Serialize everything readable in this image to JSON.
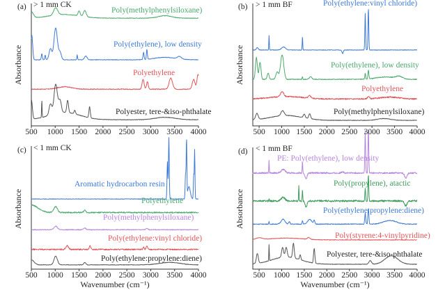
{
  "chart_data": [
    {
      "type": "line",
      "panel_label": "(a)",
      "title": "> 1 mm CK",
      "xlabel": "",
      "ylabel": "Absorbance",
      "xlim": [
        500,
        4000
      ],
      "ylim": [
        0,
        10
      ],
      "xticks": [
        500,
        1000,
        1500,
        2000,
        2500,
        3000,
        3500,
        4000
      ],
      "series": [
        {
          "name": "Poly(methylphenylsiloxane)",
          "color": "#4aa96c",
          "base": 8.8,
          "noise": 0.02,
          "peaks": [
            [
              500,
              0.5,
              60
            ],
            [
              1010,
              0.6,
              60
            ],
            [
              1500,
              0.4,
              30
            ],
            [
              1620,
              0.5,
              40
            ],
            [
              3300,
              0.2,
              200
            ],
            [
              1200,
              0.3,
              450
            ]
          ]
        },
        {
          "name": "Poly(ethylene), low density",
          "color": "#3d7ad6",
          "base": 5.4,
          "noise": 0.02,
          "peaks": [
            [
              510,
              2.0,
              25
            ],
            [
              720,
              0.5,
              15
            ],
            [
              790,
              0.4,
              12
            ],
            [
              900,
              0.9,
              40
            ],
            [
              1010,
              2.6,
              50
            ],
            [
              1100,
              0.6,
              40
            ],
            [
              1460,
              0.4,
              10
            ],
            [
              1640,
              0.3,
              40
            ],
            [
              2850,
              0.6,
              15
            ],
            [
              2920,
              0.8,
              15
            ],
            [
              3300,
              0.2,
              300
            ],
            [
              3600,
              0.2,
              60
            ]
          ]
        },
        {
          "name": "Polyethylene",
          "color": "#e0555a",
          "base": 3.0,
          "noise": 0.03,
          "peaks": [
            [
              1200,
              0.2,
              200
            ],
            [
              2840,
              0.8,
              30
            ],
            [
              2930,
              0.6,
              25
            ],
            [
              3420,
              0.9,
              50
            ],
            [
              3900,
              0.8,
              40
            ],
            [
              3990,
              1.2,
              30
            ]
          ]
        },
        {
          "name": "Polyester, tere-&iso-phthalate",
          "color": "#555555",
          "base": 0.5,
          "noise": 0.02,
          "peaks": [
            [
              500,
              1.6,
              30
            ],
            [
              720,
              1.4,
              8
            ],
            [
              900,
              0.9,
              40
            ],
            [
              1010,
              2.4,
              50
            ],
            [
              1100,
              1.0,
              40
            ],
            [
              1260,
              1.0,
              25
            ],
            [
              1410,
              0.3,
              20
            ],
            [
              1720,
              0.9,
              20
            ],
            [
              1200,
              0.6,
              450
            ],
            [
              3300,
              0.2,
              300
            ]
          ]
        }
      ]
    },
    {
      "type": "line",
      "panel_label": "(b)",
      "title": "> 1 mm BF",
      "xlabel": "",
      "ylabel": "Absorbance",
      "xlim": [
        360,
        4000
      ],
      "ylim": [
        0,
        10
      ],
      "xticks": [
        500,
        1000,
        1500,
        2000,
        2500,
        3000,
        3500,
        4000
      ],
      "series": [
        {
          "name": "Poly(ethylene:vinyl chloride)",
          "color": "#3d7ad6",
          "base": 6.2,
          "noise": 0.02,
          "peaks": [
            [
              460,
              0.2,
              30
            ],
            [
              720,
              1.2,
              8
            ],
            [
              1040,
              0.25,
              60
            ],
            [
              1460,
              1.1,
              8
            ],
            [
              2350,
              -0.3,
              20
            ],
            [
              2850,
              3.0,
              12
            ],
            [
              2920,
              3.4,
              12
            ]
          ]
        },
        {
          "name": "Poly(ethylene), low density",
          "color": "#4aa96c",
          "base": 3.8,
          "noise": 0.03,
          "peaks": [
            [
              440,
              1.8,
              30
            ],
            [
              520,
              1.4,
              30
            ],
            [
              700,
              0.5,
              30
            ],
            [
              900,
              0.6,
              40
            ],
            [
              1010,
              2.0,
              50
            ],
            [
              1460,
              0.2,
              10
            ],
            [
              1640,
              0.2,
              40
            ],
            [
              2850,
              0.5,
              12
            ],
            [
              2920,
              0.7,
              15
            ],
            [
              3300,
              0.2,
              300
            ],
            [
              3600,
              0.2,
              100
            ]
          ]
        },
        {
          "name": "Polyethylene",
          "color": "#e0555a",
          "base": 2.2,
          "noise": 0.05,
          "peaks": [
            [
              1010,
              0.4,
              50
            ],
            [
              1620,
              0.2,
              40
            ],
            [
              1100,
              0.2,
              500
            ],
            [
              2920,
              0.2,
              30
            ],
            [
              3400,
              0.15,
              300
            ]
          ]
        },
        {
          "name": "Poly(methylphenylsiloxane)",
          "color": "#555555",
          "base": 0.45,
          "noise": 0.02,
          "peaks": [
            [
              450,
              0.5,
              40
            ],
            [
              1020,
              0.4,
              50
            ],
            [
              1500,
              0.3,
              30
            ],
            [
              1620,
              0.4,
              30
            ],
            [
              1100,
              0.4,
              500
            ],
            [
              3270,
              0.15,
              200
            ]
          ]
        }
      ]
    },
    {
      "type": "line",
      "panel_label": "(c)",
      "title": "< 1 mm CK",
      "xlabel": "Wavenumber (cm⁻¹)",
      "ylabel": "Absorbance",
      "xlim": [
        500,
        4000
      ],
      "ylim": [
        0,
        10
      ],
      "xticks": [
        500,
        1000,
        1500,
        2000,
        2500,
        3000,
        3500,
        4000
      ],
      "series": [
        {
          "name": "Aromatic hydrocarbon resin",
          "color": "#3d7ad6",
          "base": 5.7,
          "noise": 0.02,
          "peaks": [
            [
              3350,
              3.0,
              12
            ],
            [
              3380,
              5.0,
              12
            ],
            [
              3730,
              2.0,
              12
            ],
            [
              3750,
              4.7,
              10
            ],
            [
              3800,
              1.0,
              40
            ],
            [
              3900,
              2.0,
              10
            ],
            [
              3920,
              4.0,
              10
            ]
          ]
        },
        {
          "name": "Polyethylene",
          "color": "#4aa96c",
          "base": 4.6,
          "noise": 0.05,
          "peaks": [
            [
              500,
              0.6,
              200
            ],
            [
              1010,
              0.5,
              50
            ],
            [
              1620,
              0.2,
              30
            ]
          ]
        },
        {
          "name": "Poly(methylphenylsiloxane)",
          "color": "#b784dd",
          "base": 3.2,
          "noise": 0.03,
          "peaks": [
            [
              1010,
              0.3,
              50
            ],
            [
              1620,
              0.15,
              30
            ],
            [
              2920,
              0.1,
              30
            ]
          ]
        },
        {
          "name": "Poly(ethylene:vinyl chloride)",
          "color": "#e0555a",
          "base": 1.6,
          "noise": 0.05,
          "peaks": [
            [
              1250,
              0.3,
              40
            ],
            [
              1730,
              0.3,
              20
            ],
            [
              2850,
              0.2,
              15
            ],
            [
              2920,
              0.3,
              20
            ]
          ]
        },
        {
          "name": "Poly(ethylene:propylene:diene)",
          "color": "#555555",
          "base": 0.35,
          "noise": 0.02,
          "peaks": [
            [
              500,
              0.4,
              80
            ],
            [
              1010,
              0.7,
              50
            ],
            [
              1620,
              0.2,
              30
            ],
            [
              3400,
              0.2,
              300
            ]
          ]
        }
      ]
    },
    {
      "type": "line",
      "panel_label": "(d)",
      "title": "< 1 mm BF",
      "xlabel": "Wavenumber (cm⁻¹)",
      "ylabel": "Absorbance",
      "xlim": [
        360,
        4000
      ],
      "ylim": [
        0,
        10
      ],
      "xticks": [
        500,
        1000,
        1500,
        2000,
        2500,
        3000,
        3500,
        4000
      ],
      "series": [
        {
          "name": "PE: Poly(ethylene), low density",
          "color": "#b784dd",
          "base": 7.9,
          "noise": 0.06,
          "peaks": [
            [
              720,
              1.0,
              8
            ],
            [
              1030,
              0.3,
              60
            ],
            [
              1460,
              0.9,
              8
            ],
            [
              1540,
              -0.5,
              30
            ],
            [
              2350,
              0.1,
              30
            ],
            [
              2850,
              3.4,
              12
            ],
            [
              2920,
              3.6,
              12
            ],
            [
              3750,
              -0.4,
              40
            ]
          ]
        },
        {
          "name": "Poly(propylene), atactic",
          "color": "#3f9a5c",
          "base": 5.6,
          "noise": 0.07,
          "peaks": [
            [
              720,
              0.2,
              8
            ],
            [
              1030,
              0.3,
              60
            ],
            [
              1380,
              1.2,
              8
            ],
            [
              1460,
              1.0,
              8
            ],
            [
              1540,
              -0.5,
              30
            ],
            [
              2850,
              1.0,
              12
            ],
            [
              2920,
              2.2,
              12
            ],
            [
              3750,
              -0.4,
              40
            ]
          ]
        },
        {
          "name": "Poly(ethylene:propylene:diene)",
          "color": "#3d7ad6",
          "base": 3.7,
          "noise": 0.03,
          "peaks": [
            [
              720,
              0.2,
              8
            ],
            [
              1030,
              0.4,
              60
            ],
            [
              1170,
              0.2,
              20
            ],
            [
              1460,
              0.3,
              12
            ],
            [
              1620,
              0.4,
              60
            ],
            [
              1720,
              0.3,
              20
            ],
            [
              2850,
              0.9,
              15
            ],
            [
              2920,
              1.3,
              15
            ],
            [
              3400,
              0.3,
              200
            ]
          ]
        },
        {
          "name": "Poly(styrene:4-vinylpyridine)",
          "color": "#e0555a",
          "base": 2.4,
          "noise": 0.02,
          "peaks": [
            [
              500,
              0.15,
              100
            ],
            [
              1100,
              0.15,
              500
            ],
            [
              1600,
              0.15,
              40
            ]
          ]
        },
        {
          "name": "Polyester, tere-&iso-phthalate",
          "color": "#555555",
          "base": 0.4,
          "noise": 0.02,
          "peaks": [
            [
              460,
              0.8,
              30
            ],
            [
              720,
              1.3,
              8
            ],
            [
              1020,
              0.8,
              30
            ],
            [
              1100,
              0.8,
              30
            ],
            [
              1260,
              1.2,
              25
            ],
            [
              1410,
              0.4,
              20
            ],
            [
              1720,
              1.2,
              20
            ],
            [
              1100,
              0.6,
              450
            ],
            [
              2960,
              0.3,
              40
            ],
            [
              3430,
              0.7,
              200
            ]
          ]
        }
      ]
    }
  ]
}
